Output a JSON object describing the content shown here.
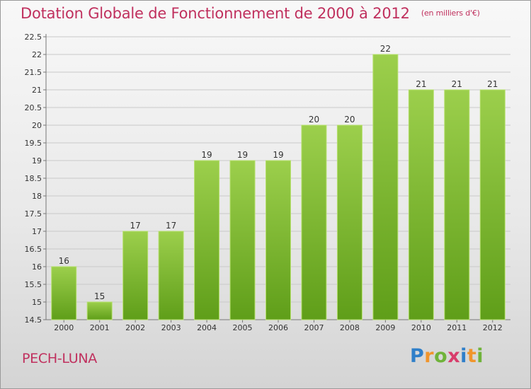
{
  "title": "Dotation Globale de Fonctionnement de 2000 à 2012",
  "unit": "(en milliers d'€)",
  "commune": "PECH-LUNA",
  "logo": {
    "letters": [
      "P",
      "r",
      "o",
      "x",
      "i",
      "t",
      "i"
    ],
    "colors": [
      "#2f7fc9",
      "#f0952c",
      "#6fb33a",
      "#d83c6b",
      "#2f7fc9",
      "#f0952c",
      "#6fb33a"
    ]
  },
  "colors": {
    "bar_top": "#9ccf4c",
    "bar_bottom": "#5f9e19",
    "title": "#c0305e"
  },
  "chart_data": {
    "type": "bar",
    "categories": [
      "2000",
      "2001",
      "2002",
      "2003",
      "2004",
      "2005",
      "2006",
      "2007",
      "2008",
      "2009",
      "2010",
      "2011",
      "2012"
    ],
    "values": [
      16,
      15,
      17,
      17,
      19,
      19,
      19,
      20,
      20,
      22,
      21,
      21,
      21
    ],
    "labels": [
      "16",
      "15",
      "17",
      "17",
      "19",
      "19",
      "19",
      "20",
      "20",
      "22",
      "21",
      "21",
      "21"
    ],
    "ylim": [
      14.5,
      22.5
    ],
    "yticks": [
      14.5,
      15,
      15.5,
      16,
      16.5,
      17,
      17.5,
      18,
      18.5,
      19,
      19.5,
      20,
      20.5,
      21,
      21.5,
      22,
      22.5
    ],
    "ytick_labels": [
      "14.5",
      "15",
      "15.5",
      "16",
      "16.5",
      "17",
      "17.5",
      "18",
      "18.5",
      "19",
      "19.5",
      "20",
      "20.5",
      "21",
      "21.5",
      "22",
      "22.5"
    ],
    "grid": true
  }
}
